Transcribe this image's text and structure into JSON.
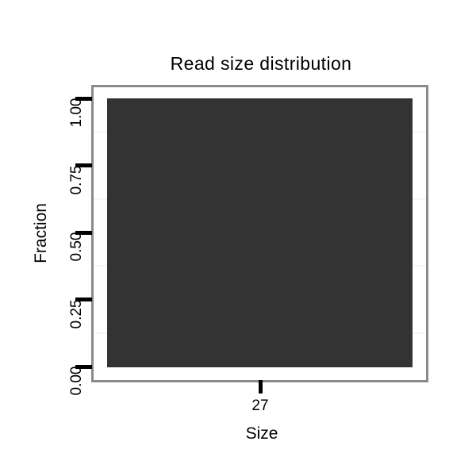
{
  "chart_data": {
    "type": "bar",
    "title": "Read size distribution",
    "xlabel": "Size",
    "ylabel": "Fraction",
    "categories": [
      "27"
    ],
    "values": [
      1.0
    ],
    "yticks": [
      "0.00",
      "0.25",
      "0.50",
      "0.75",
      "1.00"
    ],
    "ytick_values": [
      0,
      0.25,
      0.5,
      0.75,
      1.0
    ],
    "ylim": [
      0,
      1.05
    ],
    "legend": "none",
    "grid": "minor-horizontal-only",
    "colors": {
      "bar_fill": "#333333",
      "panel_border": "#8a8a8a",
      "tick_mark": "#000000",
      "minor_gridline": "#f6f6f6",
      "text": "#000000",
      "background": "#ffffff"
    }
  }
}
